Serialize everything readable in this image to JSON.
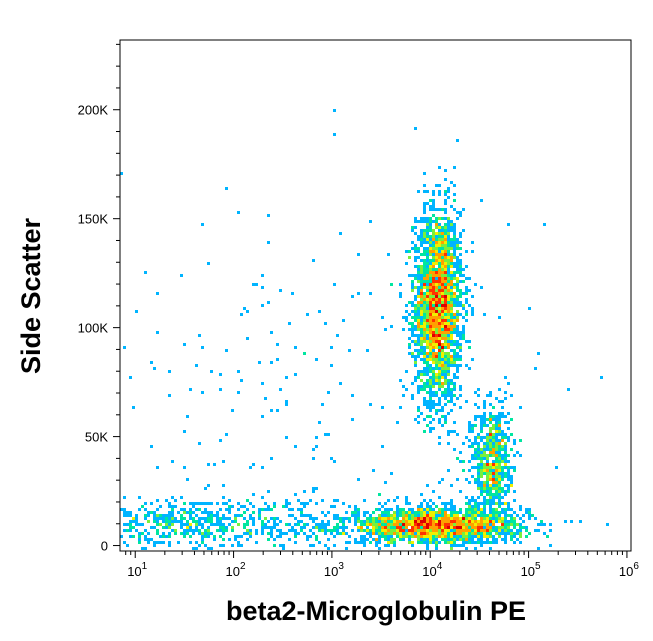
{
  "chart_data": {
    "type": "scatter",
    "subtype": "flow-cytometry-density-dot-plot",
    "xlabel": "beta2-Microglobulin PE",
    "ylabel": "Side Scatter",
    "x_scale": "log",
    "x_range": [
      7,
      1100000
    ],
    "y_range": [
      -2500,
      232000
    ],
    "x_ticks": [
      {
        "value": 10,
        "base": "10",
        "exp": "1"
      },
      {
        "value": 100,
        "base": "10",
        "exp": "2"
      },
      {
        "value": 1000,
        "base": "10",
        "exp": "3"
      },
      {
        "value": 10000,
        "base": "10",
        "exp": "4"
      },
      {
        "value": 100000,
        "base": "10",
        "exp": "5"
      },
      {
        "value": 1000000,
        "base": "10",
        "exp": "6"
      }
    ],
    "y_ticks": [
      {
        "value": 0,
        "label": "0"
      },
      {
        "value": 50000,
        "label": "50K"
      },
      {
        "value": 100000,
        "label": "100K"
      },
      {
        "value": 150000,
        "label": "150K"
      },
      {
        "value": 200000,
        "label": "200K"
      }
    ],
    "grid": false,
    "legend": "none",
    "density_colors": [
      "#0000cc",
      "#0050ff",
      "#00b4ff",
      "#00e6a0",
      "#78f03c",
      "#f0f000",
      "#ffa000",
      "#ff3200",
      "#dc0000"
    ],
    "populations": [
      {
        "log_x_center": 4.08,
        "log_x_sd": 0.12,
        "y_center": 110000,
        "y_sd": 22000,
        "count": 2600
      },
      {
        "log_x_center": 4.05,
        "log_x_sd": 0.45,
        "y_center": 9000,
        "y_sd": 4000,
        "count": 2000
      },
      {
        "log_x_center": 4.63,
        "log_x_sd": 0.1,
        "y_center": 38000,
        "y_sd": 14000,
        "count": 700
      },
      {
        "log_x_center": 1.6,
        "log_x_sd": 0.8,
        "y_center": 10000,
        "y_sd": 6000,
        "count": 700
      },
      {
        "log_x_center": 3.0,
        "log_x_sd": 1.3,
        "y_center": 60000,
        "y_sd": 50000,
        "count": 260
      }
    ]
  }
}
